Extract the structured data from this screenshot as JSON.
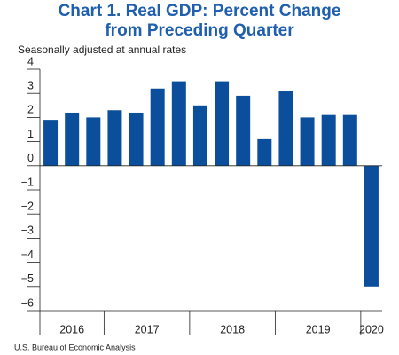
{
  "chart_data": {
    "type": "bar",
    "title": [
      "Chart 1. Real GDP: Percent Change",
      "from Preceding Quarter"
    ],
    "subtitle": "Seasonally adjusted at annual rates",
    "source": "U.S. Bureau of Economic Analysis",
    "categories": [
      null,
      null,
      null,
      null,
      null,
      null,
      null,
      null,
      null,
      null,
      null,
      null,
      null,
      null,
      null,
      null
    ],
    "groups": [
      {
        "label": "2016",
        "count": 3
      },
      {
        "label": "2017",
        "count": 4
      },
      {
        "label": "2018",
        "count": 4
      },
      {
        "label": "2019",
        "count": 4
      },
      {
        "label": "2020",
        "count": 1
      }
    ],
    "values": [
      1.9,
      2.2,
      2.0,
      2.3,
      2.2,
      3.2,
      3.5,
      2.5,
      3.5,
      2.9,
      1.1,
      3.1,
      2.0,
      2.1,
      2.1,
      -5.0
    ],
    "color": "#0b4f9c",
    "ylim": [
      -6,
      4
    ],
    "yticks": [
      {
        "value": -6,
        "label": "−6"
      },
      {
        "value": -5,
        "label": "−5"
      },
      {
        "value": -4,
        "label": "−4"
      },
      {
        "value": -3,
        "label": "−3"
      },
      {
        "value": -2,
        "label": "−2"
      },
      {
        "value": -1,
        "label": "−1"
      },
      0,
      1,
      2,
      3,
      4
    ]
  }
}
